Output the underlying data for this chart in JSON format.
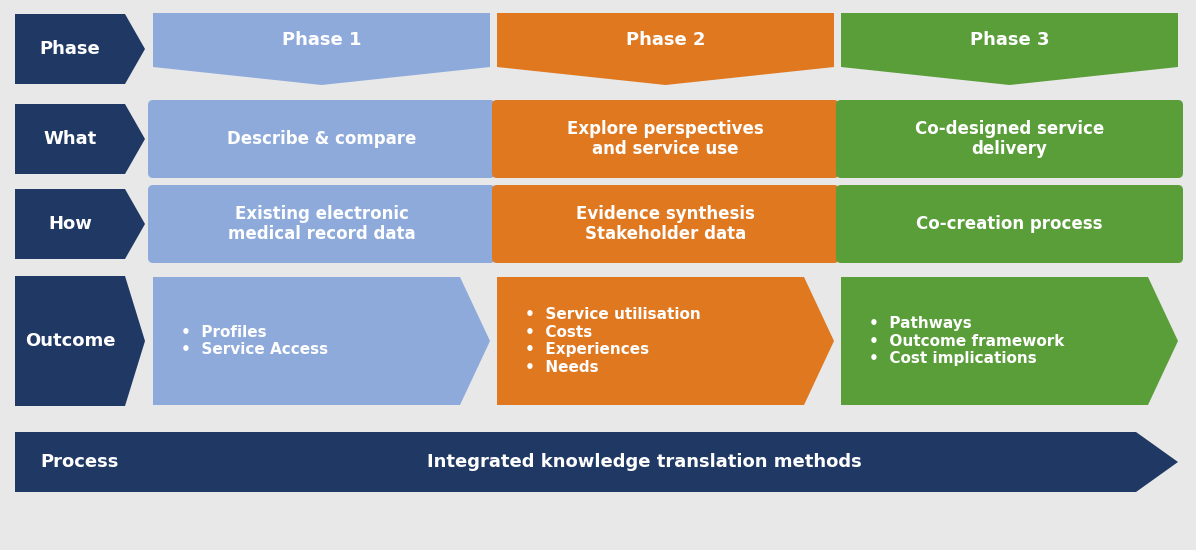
{
  "bg_color": "#e8e8e8",
  "dark_blue": "#1f3864",
  "light_blue": "#8eaadb",
  "orange": "#e07820",
  "green": "#5a9e3a",
  "white": "#ffffff",
  "rows": [
    {
      "label": "Phase",
      "cells": [
        {
          "text": "Phase 1",
          "color": "#8eaadb",
          "shape": "chevron_down"
        },
        {
          "text": "Phase 2",
          "color": "#e07820",
          "shape": "chevron_down"
        },
        {
          "text": "Phase 3",
          "color": "#5a9e3a",
          "shape": "chevron_down"
        }
      ]
    },
    {
      "label": "What",
      "cells": [
        {
          "text": "Describe & compare",
          "color": "#8eaadb",
          "shape": "rect"
        },
        {
          "text": "Explore perspectives\nand service use",
          "color": "#e07820",
          "shape": "rect"
        },
        {
          "text": "Co-designed service\ndelivery",
          "color": "#5a9e3a",
          "shape": "rect"
        }
      ]
    },
    {
      "label": "How",
      "cells": [
        {
          "text": "Existing electronic\nmedical record data",
          "color": "#8eaadb",
          "shape": "rect"
        },
        {
          "text": "Evidence synthesis\nStakeholder data",
          "color": "#e07820",
          "shape": "rect"
        },
        {
          "text": "Co-creation process",
          "color": "#5a9e3a",
          "shape": "rect"
        }
      ]
    },
    {
      "label": "Outcome",
      "cells": [
        {
          "text": "•  Profiles\n•  Service Access",
          "color": "#8eaadb",
          "shape": "chevron_right",
          "align": "left"
        },
        {
          "text": "•  Service utilisation\n•  Costs\n•  Experiences\n•  Needs",
          "color": "#e07820",
          "shape": "chevron_right",
          "align": "left"
        },
        {
          "text": "•  Pathways\n•  Outcome framework\n•  Cost implications",
          "color": "#5a9e3a",
          "shape": "chevron_right",
          "align": "left"
        }
      ]
    }
  ],
  "process_label": "Process",
  "process_text": "Integrated knowledge translation methods",
  "figw": 11.96,
  "figh": 5.5,
  "dpi": 100
}
